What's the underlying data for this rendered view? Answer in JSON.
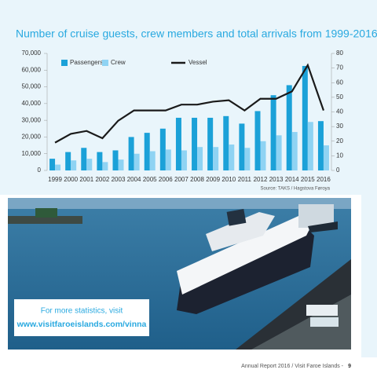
{
  "chart_data": {
    "type": "bar",
    "title": "Number of cruise guests, crew members and total arrivals from 1999-2016",
    "source": "Source: TAKS / Hagstova Føroya",
    "categories": [
      "1999",
      "2000",
      "2001",
      "2002",
      "2003",
      "2004",
      "2005",
      "2006",
      "2007",
      "2008",
      "2009",
      "2010",
      "2011",
      "2012",
      "2013",
      "2014",
      "2015",
      "2016"
    ],
    "series": [
      {
        "name": "Passengers",
        "color": "#1ba1d8",
        "values": [
          7000,
          11000,
          13500,
          11000,
          12000,
          20000,
          22500,
          25000,
          31500,
          31500,
          31500,
          32500,
          28000,
          35500,
          45000,
          51000,
          62500,
          29500
        ]
      },
      {
        "name": "Crew",
        "color": "#8fd3f3",
        "values": [
          3500,
          6000,
          7000,
          5000,
          6500,
          10000,
          11500,
          12500,
          12000,
          14000,
          14000,
          15500,
          13500,
          17500,
          21000,
          23000,
          29000,
          15000
        ]
      },
      {
        "name": "Vessel",
        "color": "#1a1a1a",
        "axis": "y2",
        "values": [
          19,
          25,
          27,
          22,
          34,
          41,
          41,
          41,
          45,
          45,
          47,
          48,
          41,
          49,
          49,
          54,
          72,
          41
        ]
      }
    ],
    "ylim": [
      0,
      70000
    ],
    "yticks": [
      0,
      {
        "value": 10000,
        "label": "10,000"
      },
      {
        "value": 20000,
        "label": "20,000"
      },
      {
        "value": 30000,
        "label": "30,000"
      },
      {
        "value": 40000,
        "label": "40,000"
      },
      {
        "value": 50000,
        "label": "50,000"
      },
      {
        "value": 60000,
        "label": "60,000"
      },
      {
        "value": 70000,
        "label": "70,000"
      }
    ],
    "y2lim": [
      0,
      80
    ],
    "y2ticks": [
      0,
      10,
      20,
      30,
      40,
      50,
      60,
      70,
      80
    ],
    "legend": "top-left"
  },
  "callout": {
    "text": "For more statistics, visit",
    "link": "www.visitfaroeislands.com/vinna"
  },
  "footer": {
    "text": "Annual Report 2016 / Visit Faroe Islands -",
    "page": "9"
  }
}
